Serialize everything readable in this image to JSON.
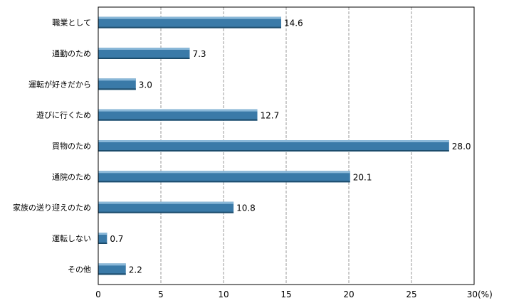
{
  "chart_data": {
    "type": "bar",
    "orientation": "horizontal",
    "categories": [
      "職業として",
      "通勤のため",
      "運転が好きだから",
      "遊びに行くため",
      "買物のため",
      "通院のため",
      "家族の送り迎えのため",
      "運転しない",
      "その他"
    ],
    "values": [
      14.6,
      7.3,
      3.0,
      12.7,
      28.0,
      20.1,
      10.8,
      0.7,
      2.2
    ],
    "value_labels": [
      "14.6",
      "7.3",
      "3.0",
      "12.7",
      "28.0",
      "20.1",
      "10.8",
      "0.7",
      "2.2"
    ],
    "xlim": [
      0,
      30
    ],
    "xticks": [
      0,
      5,
      10,
      15,
      20,
      25,
      30
    ],
    "xtick_labels": [
      "0",
      "5",
      "10",
      "15",
      "20",
      "25",
      "30"
    ],
    "xunit": "(%)",
    "grid": "vertical dashed",
    "legend": "none",
    "colors": {
      "bar": "#3a7aa8",
      "bar_highlight": "#8ab8d8",
      "bar_shadow": "#1c4c6c",
      "grid": "#999999",
      "frame": "#000000"
    }
  }
}
